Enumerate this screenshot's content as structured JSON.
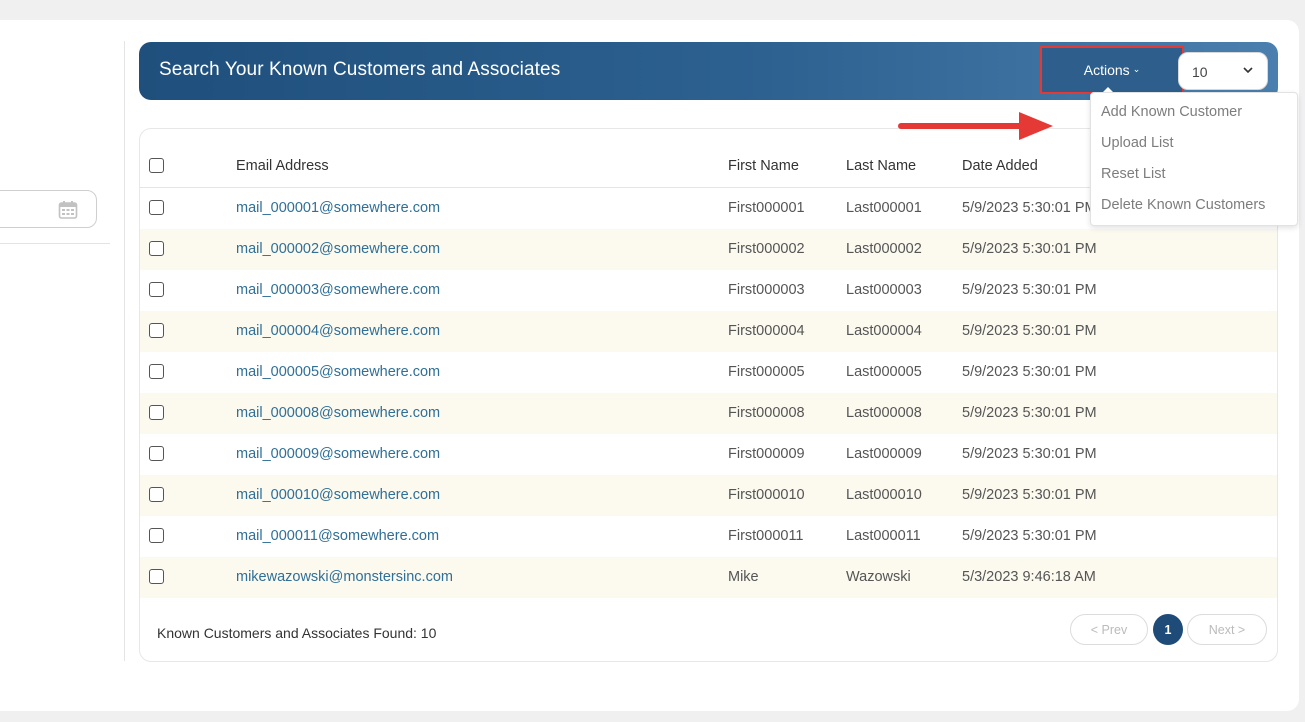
{
  "header": {
    "title": "Search Your Known Customers and Associates",
    "actions_label": "Actions",
    "per_page_value": "10"
  },
  "actions_menu": {
    "items": [
      "Add Known Customer",
      "Upload List",
      "Reset List",
      "Delete Known Customers"
    ]
  },
  "table": {
    "columns": [
      "Email Address",
      "First Name",
      "Last Name",
      "Date Added"
    ],
    "rows": [
      {
        "email": "mail_000001@somewhere.com",
        "first": "First000001",
        "last": "Last000001",
        "date": "5/9/2023 5:30:01 PM"
      },
      {
        "email": "mail_000002@somewhere.com",
        "first": "First000002",
        "last": "Last000002",
        "date": "5/9/2023 5:30:01 PM"
      },
      {
        "email": "mail_000003@somewhere.com",
        "first": "First000003",
        "last": "Last000003",
        "date": "5/9/2023 5:30:01 PM"
      },
      {
        "email": "mail_000004@somewhere.com",
        "first": "First000004",
        "last": "Last000004",
        "date": "5/9/2023 5:30:01 PM"
      },
      {
        "email": "mail_000005@somewhere.com",
        "first": "First000005",
        "last": "Last000005",
        "date": "5/9/2023 5:30:01 PM"
      },
      {
        "email": "mail_000008@somewhere.com",
        "first": "First000008",
        "last": "Last000008",
        "date": "5/9/2023 5:30:01 PM"
      },
      {
        "email": "mail_000009@somewhere.com",
        "first": "First000009",
        "last": "Last000009",
        "date": "5/9/2023 5:30:01 PM"
      },
      {
        "email": "mail_000010@somewhere.com",
        "first": "First000010",
        "last": "Last000010",
        "date": "5/9/2023 5:30:01 PM"
      },
      {
        "email": "mail_000011@somewhere.com",
        "first": "First000011",
        "last": "Last000011",
        "date": "5/9/2023 5:30:01 PM"
      },
      {
        "email": "mikewazowski@monstersinc.com",
        "first": "Mike",
        "last": "Wazowski",
        "date": "5/3/2023 9:46:18 AM"
      }
    ]
  },
  "footer": {
    "found_text": "Known Customers and Associates Found: 10",
    "prev_label": "< Prev",
    "current_page": "1",
    "next_label": "Next >"
  },
  "colors": {
    "banner": "#2d6190",
    "accent_red": "#e53935",
    "link": "#2f6f98",
    "row_alt": "#fcf9ef"
  }
}
